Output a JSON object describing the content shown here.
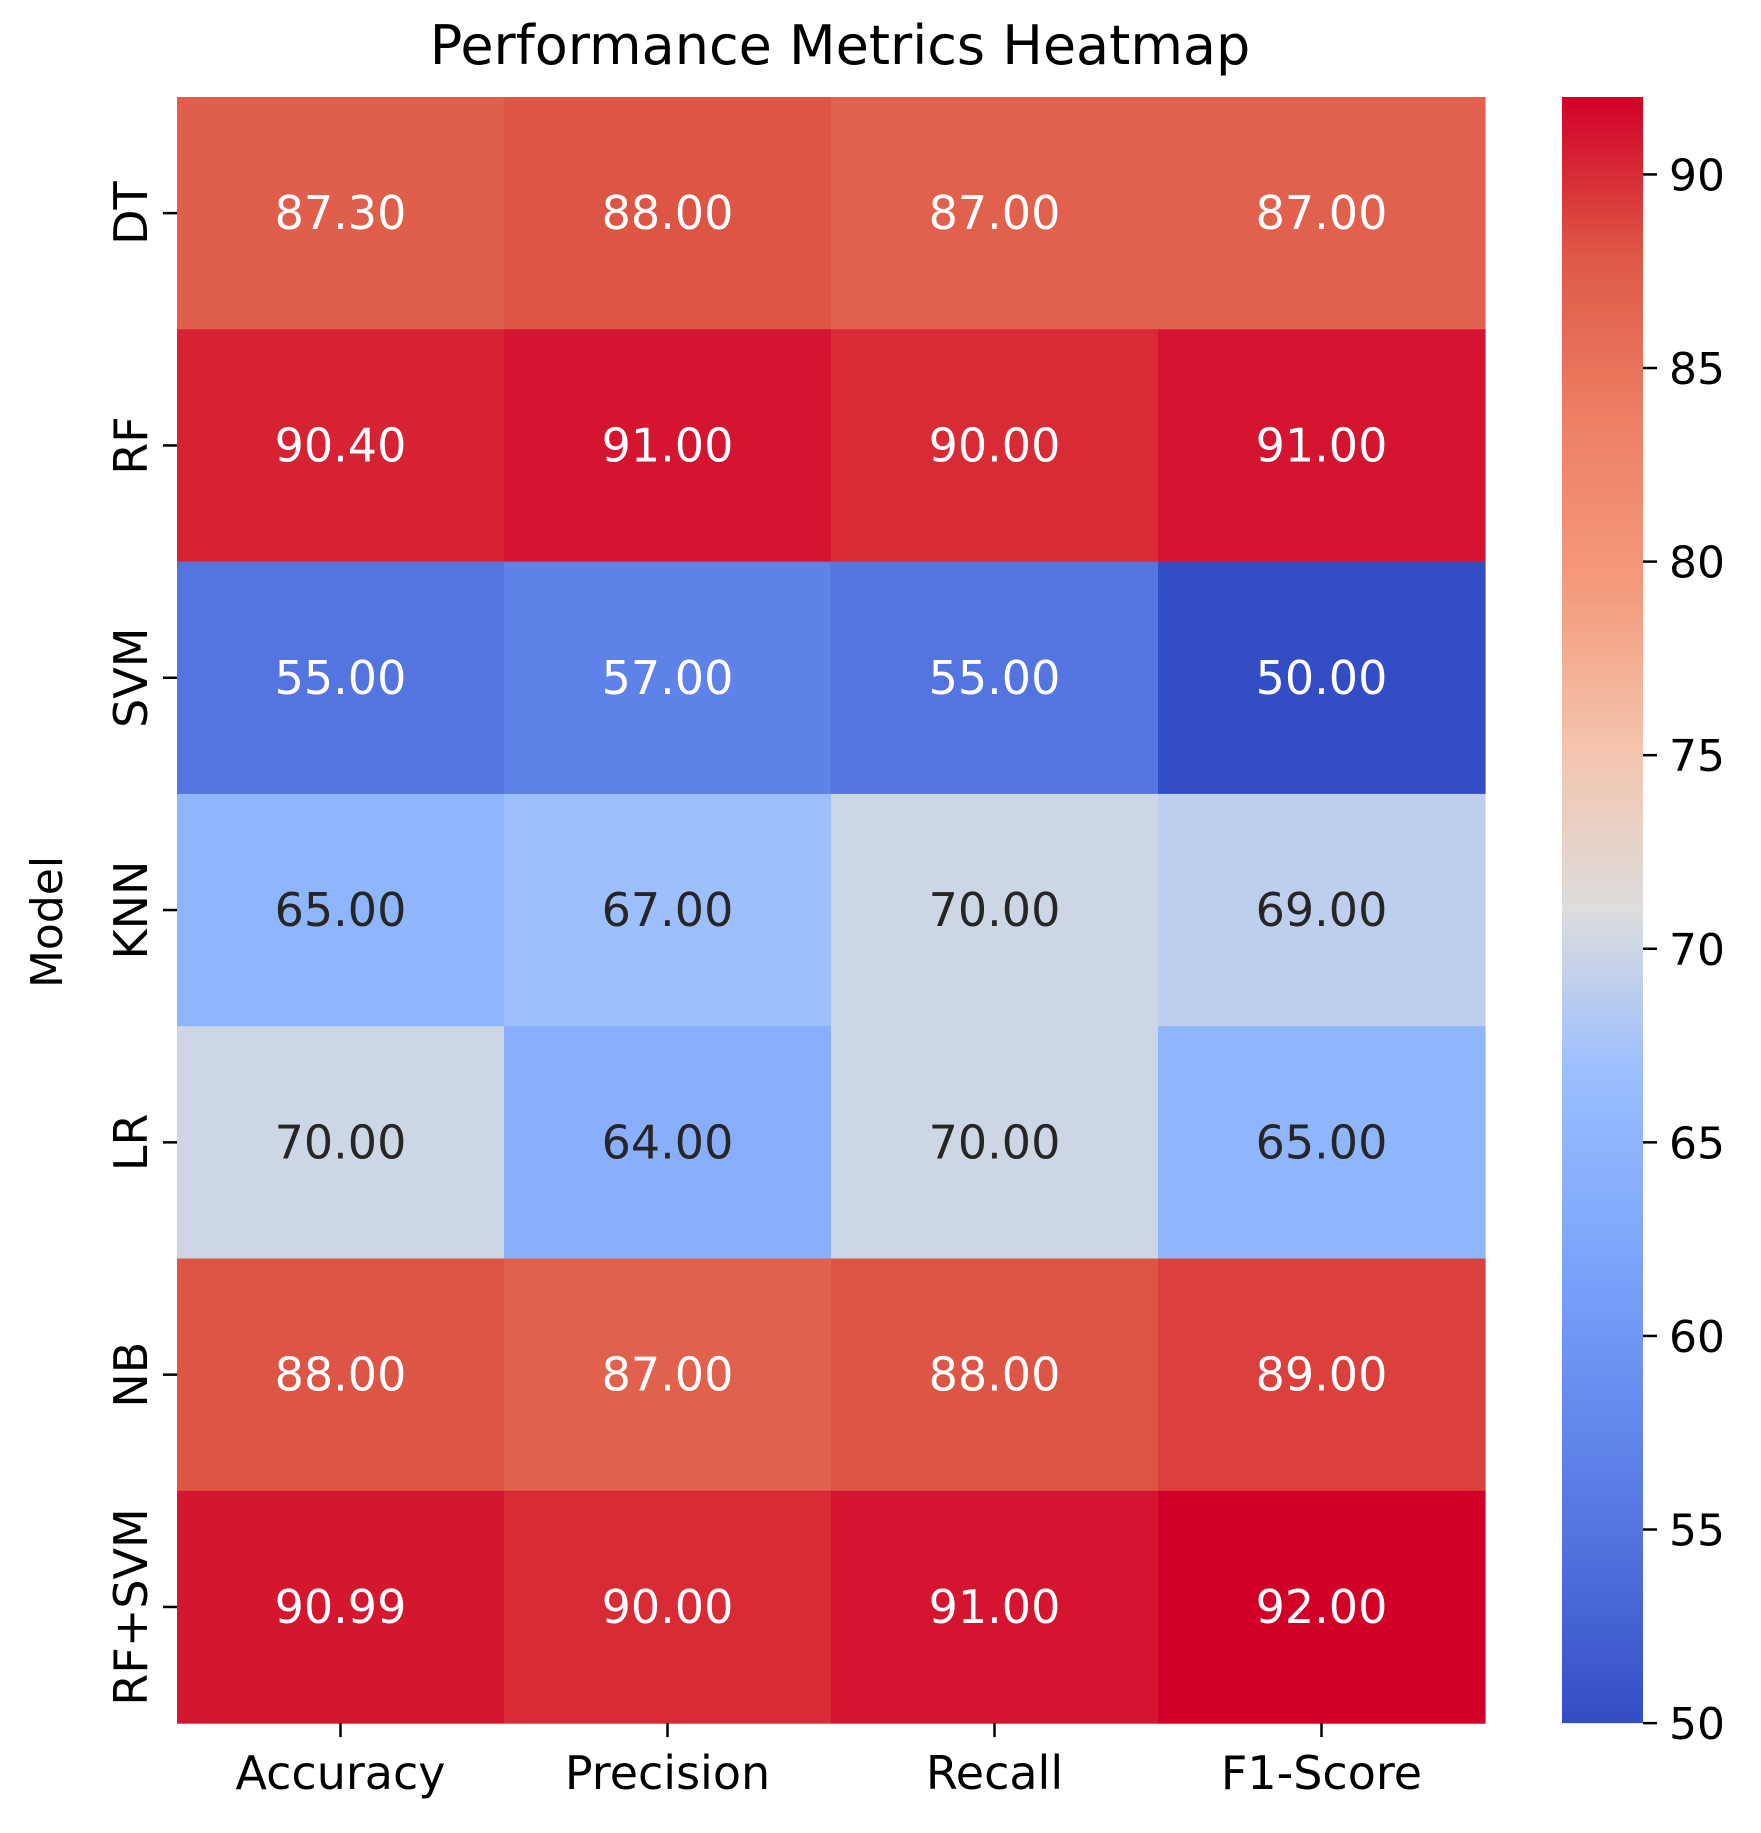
{
  "chart_data": {
    "type": "heatmap",
    "title": "Performance Metrics Heatmap",
    "xlabel": "",
    "ylabel": "Model",
    "x_categories": [
      "Accuracy",
      "Precision",
      "Recall",
      "F1-Score"
    ],
    "y_categories": [
      "DT",
      "RF",
      "SVM",
      "KNN",
      "LR",
      "NB",
      "RF+SVM"
    ],
    "values": [
      [
        87.3,
        88.0,
        87.0,
        87.0
      ],
      [
        90.4,
        91.0,
        90.0,
        91.0
      ],
      [
        55.0,
        57.0,
        55.0,
        50.0
      ],
      [
        65.0,
        67.0,
        70.0,
        69.0
      ],
      [
        70.0,
        64.0,
        70.0,
        65.0
      ],
      [
        88.0,
        87.0,
        88.0,
        89.0
      ],
      [
        90.99,
        90.0,
        91.0,
        92.0
      ]
    ],
    "value_format_decimals": 2,
    "colormap": "coolwarm",
    "color_range": [
      50,
      92
    ],
    "colorbar_ticks": [
      50,
      55,
      60,
      65,
      70,
      75,
      80,
      85,
      90
    ],
    "colorbar_tick_labels": [
      "50",
      "55",
      "60",
      "65",
      "70",
      "75",
      "80",
      "85",
      "90"
    ],
    "colors": {
      "dark_text": "#262626",
      "light_text": "#ffffff",
      "axis": "#000000"
    }
  }
}
